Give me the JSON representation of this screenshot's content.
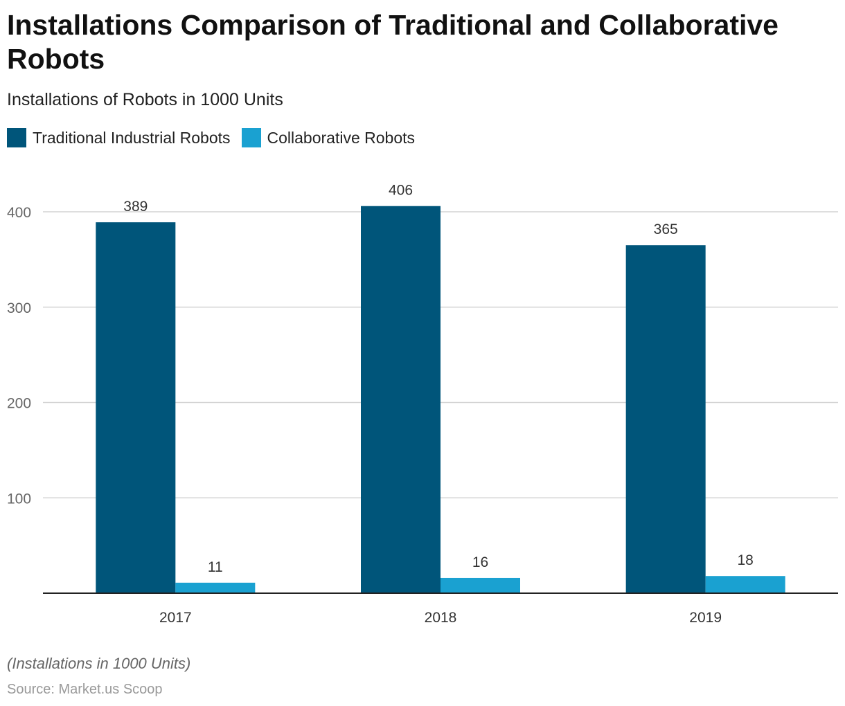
{
  "chart_data": {
    "type": "bar",
    "title": "Installations Comparison of Traditional and Collaborative Robots",
    "subtitle": "Installations of Robots in 1000 Units",
    "categories": [
      "2017",
      "2018",
      "2019"
    ],
    "series": [
      {
        "name": "Traditional Industrial Robots",
        "values": [
          389,
          406,
          365
        ],
        "color": "#00557a"
      },
      {
        "name": "Collaborative Robots",
        "values": [
          11,
          16,
          18
        ],
        "color": "#1aa1d1"
      }
    ],
    "ylim": [
      0,
      400
    ],
    "yticks": [
      100,
      200,
      300,
      400
    ],
    "grid": true,
    "legend": "top-left",
    "note": "(Installations in 1000 Units)",
    "source": "Source: Market.us Scoop"
  }
}
